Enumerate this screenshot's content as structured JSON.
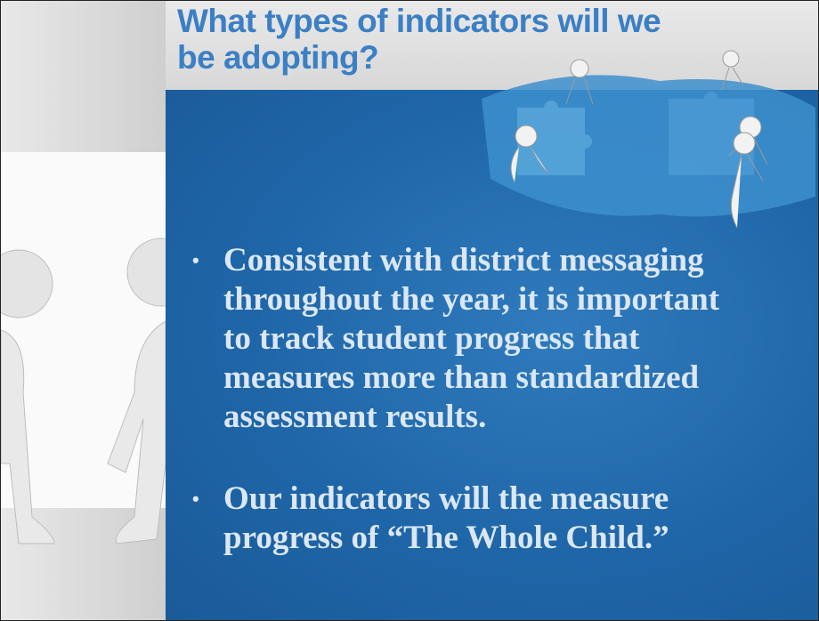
{
  "header": {
    "title_lines": [
      "What types of indicators will we",
      "be adopting?"
    ]
  },
  "bullets": [
    {
      "lines": [
        "Consistent with district messaging",
        "throughout the year, it is important",
        "to track student progress that",
        "measures more than  standardized",
        "assessment results."
      ]
    },
    {
      "lines": [
        "Our indicators will the measure",
        "progress  of “The Whole Child.”"
      ]
    }
  ]
}
